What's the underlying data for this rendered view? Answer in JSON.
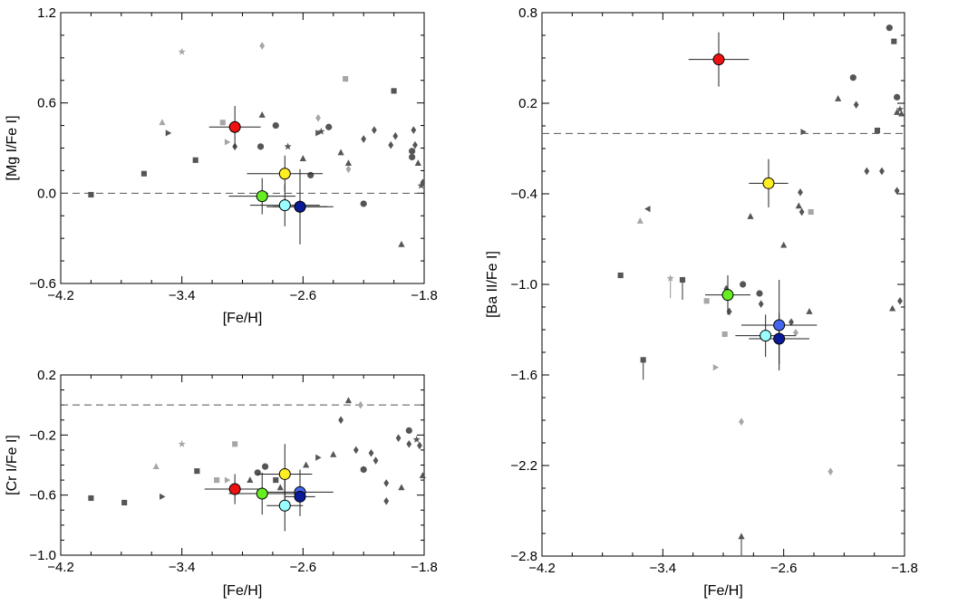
{
  "colors": {
    "red": "#ee1111",
    "yellow": "#ffee22",
    "green": "#66ee22",
    "cyan": "#99ffff",
    "royal_blue": "#4466ee",
    "navy": "#0a1a99",
    "dark_gray": "#555555",
    "light_gray": "#a6a6a6"
  },
  "chart_data": [
    {
      "id": "mg",
      "type": "scatter",
      "title": "",
      "xlabel": "[Fe/H]",
      "ylabel": "[Mg I/Fe I]",
      "xlim": [
        -4.2,
        -1.8
      ],
      "ylim": [
        -0.6,
        1.2
      ],
      "xticks": [
        -4.2,
        -3.4,
        -2.6,
        -1.8
      ],
      "xtick_labels": [
        "−4.2",
        "−3.4",
        "−2.6",
        "−1.8"
      ],
      "yticks": [
        -0.6,
        0.0,
        0.6,
        1.2
      ],
      "ytick_labels": [
        "−0.6",
        "0.0",
        "0.6",
        "1.2"
      ],
      "reference_line": 0.0,
      "highlighted": [
        {
          "color": "red",
          "x": -3.05,
          "y": 0.44,
          "xerr": 0.17,
          "yerr": 0.14
        },
        {
          "color": "yellow",
          "x": -2.72,
          "y": 0.13,
          "xerr": 0.25,
          "yerr": 0.12
        },
        {
          "color": "green",
          "x": -2.87,
          "y": -0.02,
          "xerr": 0.22,
          "yerr": 0.12
        },
        {
          "color": "cyan",
          "x": -2.72,
          "y": -0.08,
          "xerr": 0.23,
          "yerr": 0.14
        },
        {
          "color": "royal_blue",
          "x": -2.62,
          "y": -0.09,
          "xerr": 0.18,
          "yerr": 0.19
        },
        {
          "color": "navy",
          "x": -2.62,
          "y": -0.09,
          "xerr": 0.22,
          "yerr": 0.25
        }
      ],
      "background": [
        {
          "m": "square",
          "c": "dark",
          "x": -4.0,
          "y": -0.01
        },
        {
          "m": "square",
          "c": "dark",
          "x": -3.65,
          "y": 0.13
        },
        {
          "m": "triangle",
          "c": "light",
          "x": -3.53,
          "y": 0.47
        },
        {
          "m": "right",
          "c": "dark",
          "x": -3.49,
          "y": 0.4
        },
        {
          "m": "star",
          "c": "light",
          "x": -3.4,
          "y": 0.94
        },
        {
          "m": "square",
          "c": "dark",
          "x": -3.31,
          "y": 0.22
        },
        {
          "m": "square",
          "c": "light",
          "x": -3.13,
          "y": 0.47
        },
        {
          "m": "right",
          "c": "light",
          "x": -3.1,
          "y": 0.34
        },
        {
          "m": "diamond",
          "c": "dark",
          "x": -3.05,
          "y": 0.31
        },
        {
          "m": "triangle",
          "c": "dark",
          "x": -2.87,
          "y": 0.52
        },
        {
          "m": "circle",
          "c": "dark",
          "x": -2.88,
          "y": 0.31
        },
        {
          "m": "diamond",
          "c": "light",
          "x": -2.87,
          "y": 0.98
        },
        {
          "m": "circle",
          "c": "dark",
          "x": -2.78,
          "y": 0.45
        },
        {
          "m": "star",
          "c": "dark",
          "x": -2.7,
          "y": 0.31
        },
        {
          "m": "triangle",
          "c": "dark",
          "x": -2.6,
          "y": 0.23
        },
        {
          "m": "circle",
          "c": "dark",
          "x": -2.55,
          "y": 0.12
        },
        {
          "m": "circle",
          "c": "dark",
          "x": -2.43,
          "y": 0.44
        },
        {
          "m": "right",
          "c": "dark",
          "x": -2.5,
          "y": 0.4
        },
        {
          "m": "star",
          "c": "dark",
          "x": -2.48,
          "y": 0.41
        },
        {
          "m": "diamond",
          "c": "light",
          "x": -2.5,
          "y": 0.5
        },
        {
          "m": "triangle",
          "c": "dark",
          "x": -2.35,
          "y": 0.27
        },
        {
          "m": "triangle",
          "c": "dark",
          "x": -2.3,
          "y": 0.2
        },
        {
          "m": "diamond",
          "c": "light",
          "x": -2.3,
          "y": 0.16
        },
        {
          "m": "square",
          "c": "light",
          "x": -2.32,
          "y": 0.76
        },
        {
          "m": "diamond",
          "c": "dark",
          "x": -2.2,
          "y": 0.36
        },
        {
          "m": "circle",
          "c": "dark",
          "x": -2.2,
          "y": -0.07
        },
        {
          "m": "diamond",
          "c": "dark",
          "x": -2.13,
          "y": 0.42
        },
        {
          "m": "square",
          "c": "dark",
          "x": -2.0,
          "y": 0.68
        },
        {
          "m": "diamond",
          "c": "dark",
          "x": -2.02,
          "y": 0.32
        },
        {
          "m": "diamond",
          "c": "dark",
          "x": -1.99,
          "y": 0.38
        },
        {
          "m": "triangle",
          "c": "dark",
          "x": -1.95,
          "y": -0.34
        },
        {
          "m": "diamond",
          "c": "dark",
          "x": -1.87,
          "y": 0.42
        },
        {
          "m": "circle",
          "c": "dark",
          "x": -1.88,
          "y": 0.28
        },
        {
          "m": "circle",
          "c": "dark",
          "x": -1.88,
          "y": 0.24
        },
        {
          "m": "diamond",
          "c": "dark",
          "x": -1.86,
          "y": 0.32
        },
        {
          "m": "triangle",
          "c": "dark",
          "x": -1.84,
          "y": 0.2
        },
        {
          "m": "star",
          "c": "dark",
          "x": -1.82,
          "y": 0.05
        },
        {
          "m": "diamond",
          "c": "dark",
          "x": -1.81,
          "y": 0.07
        }
      ]
    },
    {
      "id": "cr",
      "type": "scatter",
      "title": "",
      "xlabel": "[Fe/H]",
      "ylabel": "[Cr I/Fe I]",
      "xlim": [
        -4.2,
        -1.8
      ],
      "ylim": [
        -1.0,
        0.2
      ],
      "xticks": [
        -4.2,
        -3.4,
        -2.6,
        -1.8
      ],
      "xtick_labels": [
        "−4.2",
        "−3.4",
        "−2.6",
        "−1.8"
      ],
      "yticks": [
        -1.0,
        -0.6,
        -0.2,
        0.2
      ],
      "ytick_labels": [
        "−1.0",
        "−0.6",
        "−0.2",
        "0.2"
      ],
      "reference_line": 0.0,
      "highlighted": [
        {
          "color": "red",
          "x": -3.05,
          "y": -0.56,
          "xerr": 0.2,
          "yerr": 0.1
        },
        {
          "color": "yellow",
          "x": -2.72,
          "y": -0.46,
          "xerr": 0.18,
          "yerr": 0.2
        },
        {
          "color": "green",
          "x": -2.87,
          "y": -0.59,
          "xerr": 0.22,
          "yerr": 0.14
        },
        {
          "color": "cyan",
          "x": -2.72,
          "y": -0.67,
          "xerr": 0.12,
          "yerr": 0.17
        },
        {
          "color": "royal_blue",
          "x": -2.62,
          "y": -0.58,
          "xerr": 0.22,
          "yerr": 0.15
        },
        {
          "color": "navy",
          "x": -2.62,
          "y": -0.61,
          "xerr": 0.1,
          "yerr": 0.13
        }
      ],
      "background": [
        {
          "m": "square",
          "c": "dark",
          "x": -4.0,
          "y": -0.62
        },
        {
          "m": "square",
          "c": "dark",
          "x": -3.78,
          "y": -0.65
        },
        {
          "m": "triangle",
          "c": "light",
          "x": -3.57,
          "y": -0.41
        },
        {
          "m": "right",
          "c": "dark",
          "x": -3.53,
          "y": -0.61
        },
        {
          "m": "star",
          "c": "light",
          "x": -3.4,
          "y": -0.26
        },
        {
          "m": "square",
          "c": "dark",
          "x": -3.3,
          "y": -0.44
        },
        {
          "m": "square",
          "c": "light",
          "x": -3.17,
          "y": -0.5
        },
        {
          "m": "right",
          "c": "light",
          "x": -3.1,
          "y": -0.5
        },
        {
          "m": "square",
          "c": "light",
          "x": -3.05,
          "y": -0.26
        },
        {
          "m": "triangle",
          "c": "dark",
          "x": -2.95,
          "y": -0.5
        },
        {
          "m": "circle",
          "c": "dark",
          "x": -2.85,
          "y": -0.41
        },
        {
          "m": "circle",
          "c": "dark",
          "x": -2.9,
          "y": -0.45
        },
        {
          "m": "square",
          "c": "dark",
          "x": -2.78,
          "y": -0.5
        },
        {
          "m": "triangle",
          "c": "dark",
          "x": -2.75,
          "y": -0.55
        },
        {
          "m": "triangle",
          "c": "dark",
          "x": -2.58,
          "y": -0.4
        },
        {
          "m": "right",
          "c": "dark",
          "x": -2.5,
          "y": -0.35
        },
        {
          "m": "triangle",
          "c": "dark",
          "x": -2.4,
          "y": -0.33
        },
        {
          "m": "diamond",
          "c": "dark",
          "x": -2.35,
          "y": -0.1
        },
        {
          "m": "triangle",
          "c": "dark",
          "x": -2.3,
          "y": 0.03
        },
        {
          "m": "diamond",
          "c": "light",
          "x": -2.22,
          "y": 0.0
        },
        {
          "m": "diamond",
          "c": "dark",
          "x": -2.25,
          "y": -0.3
        },
        {
          "m": "circle",
          "c": "dark",
          "x": -2.2,
          "y": -0.43
        },
        {
          "m": "diamond",
          "c": "dark",
          "x": -2.15,
          "y": -0.32
        },
        {
          "m": "diamond",
          "c": "dark",
          "x": -2.12,
          "y": -0.37
        },
        {
          "m": "diamond",
          "c": "dark",
          "x": -2.05,
          "y": -0.52
        },
        {
          "m": "diamond",
          "c": "dark",
          "x": -2.05,
          "y": -0.64
        },
        {
          "m": "diamond",
          "c": "dark",
          "x": -1.97,
          "y": -0.22
        },
        {
          "m": "triangle",
          "c": "dark",
          "x": -1.95,
          "y": -0.55
        },
        {
          "m": "circle",
          "c": "dark",
          "x": -1.9,
          "y": -0.17
        },
        {
          "m": "diamond",
          "c": "dark",
          "x": -1.9,
          "y": -0.26
        },
        {
          "m": "star",
          "c": "dark",
          "x": -1.85,
          "y": -0.23
        },
        {
          "m": "diamond",
          "c": "dark",
          "x": -1.83,
          "y": -0.27
        },
        {
          "m": "triangle",
          "c": "dark",
          "x": -1.81,
          "y": -0.47
        }
      ]
    },
    {
      "id": "ba",
      "type": "scatter",
      "title": "",
      "xlabel": "[Fe/H]",
      "ylabel": "[Ba II/Fe I]",
      "xlim": [
        -4.2,
        -1.8
      ],
      "ylim": [
        -2.8,
        0.8
      ],
      "xticks": [
        -4.2,
        -3.4,
        -2.6,
        -1.8
      ],
      "xtick_labels": [
        "−4.2",
        "−3.4",
        "−2.6",
        "−1.8"
      ],
      "yticks": [
        -2.8,
        -2.2,
        -1.6,
        -1.0,
        -0.4,
        0.2,
        0.8
      ],
      "ytick_labels": [
        "−2.8",
        "−2.2",
        "−1.6",
        "−1.0",
        "−0.4",
        "0.2",
        "0.8"
      ],
      "reference_line": 0.0,
      "highlighted": [
        {
          "color": "red",
          "x": -3.03,
          "y": 0.49,
          "xerr": 0.2,
          "yerr": 0.18
        },
        {
          "color": "yellow",
          "x": -2.7,
          "y": -0.33,
          "xerr": 0.13,
          "yerr": 0.16
        },
        {
          "color": "green",
          "x": -2.97,
          "y": -1.07,
          "xerr": 0.15,
          "yerr": 0.13
        },
        {
          "color": "cyan",
          "x": -2.72,
          "y": -1.34,
          "xerr": 0.2,
          "yerr": 0.14
        },
        {
          "color": "royal_blue",
          "x": -2.63,
          "y": -1.27,
          "xerr": 0.25,
          "yerr": 0.3
        },
        {
          "color": "navy",
          "x": -2.63,
          "y": -1.36,
          "xerr": 0.2,
          "yerr": 0.17
        }
      ],
      "background": [
        {
          "m": "square",
          "c": "dark",
          "x": -3.68,
          "y": -0.94
        },
        {
          "m": "triangle",
          "c": "light",
          "x": -3.55,
          "y": -0.58
        },
        {
          "m": "left",
          "c": "dark",
          "x": -3.5,
          "y": -0.5
        },
        {
          "m": "star",
          "c": "light",
          "x": -3.35,
          "y": -0.96,
          "up": true
        },
        {
          "m": "square",
          "c": "dark",
          "x": -3.27,
          "y": -0.97,
          "up": true
        },
        {
          "m": "square",
          "c": "dark",
          "x": -3.53,
          "y": -1.5,
          "up": true
        },
        {
          "m": "square",
          "c": "light",
          "x": -3.11,
          "y": -1.11
        },
        {
          "m": "right",
          "c": "light",
          "x": -3.05,
          "y": -1.55
        },
        {
          "m": "square",
          "c": "light",
          "x": -2.99,
          "y": -1.33
        },
        {
          "m": "diamond",
          "c": "dark",
          "x": -2.98,
          "y": -1.03
        },
        {
          "m": "diamond",
          "c": "dark",
          "x": -2.96,
          "y": -1.18
        },
        {
          "m": "circle",
          "c": "dark",
          "x": -2.87,
          "y": -1.0
        },
        {
          "m": "triangle",
          "c": "dark",
          "x": -2.82,
          "y": -0.55
        },
        {
          "m": "diamond",
          "c": "light",
          "x": -2.88,
          "y": -1.91
        },
        {
          "m": "triangle",
          "c": "dark",
          "x": -2.88,
          "y": -2.67,
          "up": true
        },
        {
          "m": "circle",
          "c": "dark",
          "x": -2.76,
          "y": -1.06
        },
        {
          "m": "diamond",
          "c": "dark",
          "x": -2.75,
          "y": -1.13
        },
        {
          "m": "diamond",
          "c": "dark",
          "x": -2.55,
          "y": -1.25
        },
        {
          "m": "diamond",
          "c": "light",
          "x": -2.52,
          "y": -1.32
        },
        {
          "m": "triangle",
          "c": "dark",
          "x": -2.6,
          "y": -0.74
        },
        {
          "m": "triangle",
          "c": "dark",
          "x": -2.5,
          "y": -0.48
        },
        {
          "m": "diamond",
          "c": "dark",
          "x": -2.48,
          "y": -0.52
        },
        {
          "m": "diamond",
          "c": "dark",
          "x": -2.49,
          "y": -0.39
        },
        {
          "m": "square",
          "c": "light",
          "x": -2.42,
          "y": -0.52
        },
        {
          "m": "triangle",
          "c": "dark",
          "x": -2.43,
          "y": -1.18
        },
        {
          "m": "right",
          "c": "dark",
          "x": -2.47,
          "y": 0.01
        },
        {
          "m": "triangle",
          "c": "dark",
          "x": -2.24,
          "y": 0.23
        },
        {
          "m": "diamond",
          "c": "dark",
          "x": -2.12,
          "y": 0.19
        },
        {
          "m": "diamond",
          "c": "light",
          "x": -2.29,
          "y": -2.24
        },
        {
          "m": "circle",
          "c": "dark",
          "x": -2.14,
          "y": 0.37
        },
        {
          "m": "diamond",
          "c": "dark",
          "x": -2.05,
          "y": -0.25
        },
        {
          "m": "square",
          "c": "dark",
          "x": -1.98,
          "y": 0.02
        },
        {
          "m": "diamond",
          "c": "dark",
          "x": -1.95,
          "y": -0.25
        },
        {
          "m": "diamond",
          "c": "dark",
          "x": -1.83,
          "y": -1.11
        },
        {
          "m": "triangle",
          "c": "dark",
          "x": -1.88,
          "y": -1.16
        },
        {
          "m": "circle",
          "c": "dark",
          "x": -1.85,
          "y": 0.24
        },
        {
          "m": "circle",
          "c": "dark",
          "x": -1.9,
          "y": 0.7
        },
        {
          "m": "square",
          "c": "dark",
          "x": -1.87,
          "y": 0.61
        },
        {
          "m": "triangle",
          "c": "dark",
          "x": -1.85,
          "y": 0.14
        },
        {
          "m": "star",
          "c": "dark",
          "x": -1.83,
          "y": 0.16
        },
        {
          "m": "triangle",
          "c": "dark",
          "x": -1.82,
          "y": 0.13
        },
        {
          "m": "diamond",
          "c": "dark",
          "x": -1.85,
          "y": -0.38
        }
      ]
    }
  ]
}
